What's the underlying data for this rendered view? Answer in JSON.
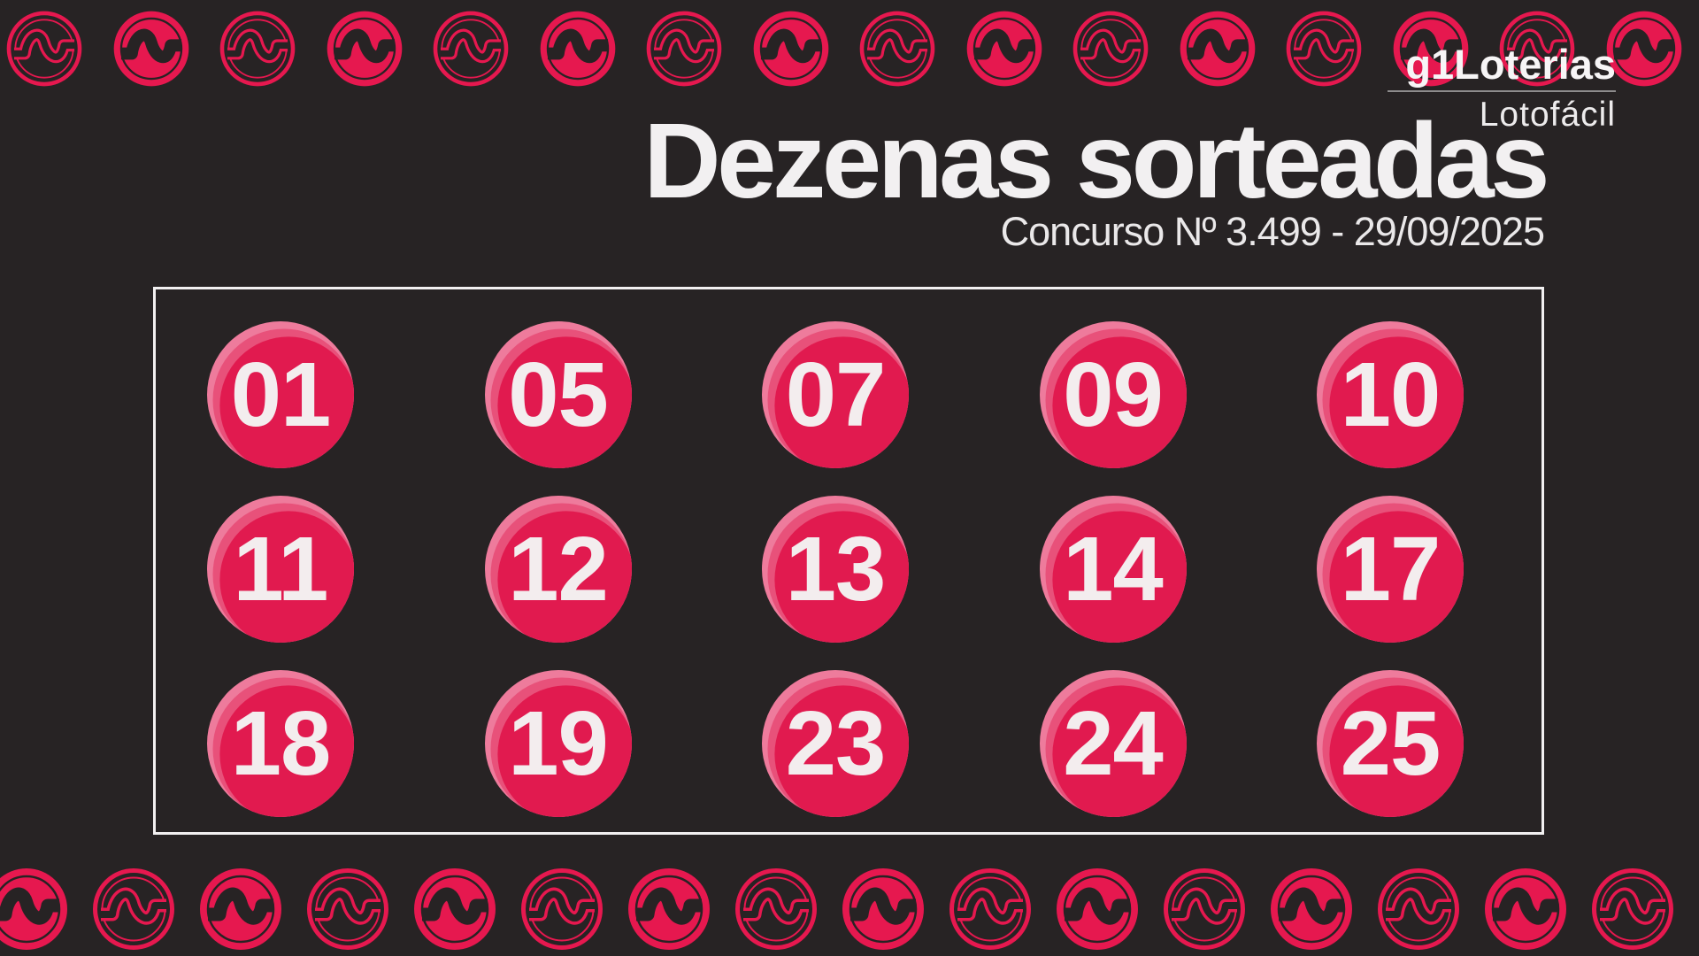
{
  "brand": {
    "logo": "g1Loterias",
    "product": "Lotofácil"
  },
  "header": {
    "title": "Dezenas sorteadas",
    "subtitle": "Concurso Nº 3.499 - 29/09/2025"
  },
  "numbers": [
    "01",
    "05",
    "07",
    "09",
    "10",
    "11",
    "12",
    "13",
    "14",
    "17",
    "18",
    "19",
    "23",
    "24",
    "25"
  ],
  "decor": {
    "coin_icon": "money-sign-coin",
    "top_coin_count": 16,
    "bottom_coin_count": 16,
    "top_first_style": "outline",
    "bottom_first_style": "filled"
  },
  "colors": {
    "background": "#272324",
    "pink": "#e6184f",
    "ball": "#e11a4f",
    "ball-mid": "#e8517a",
    "ball-bright": "#ee7b9c",
    "text": "#f2f0f1"
  }
}
